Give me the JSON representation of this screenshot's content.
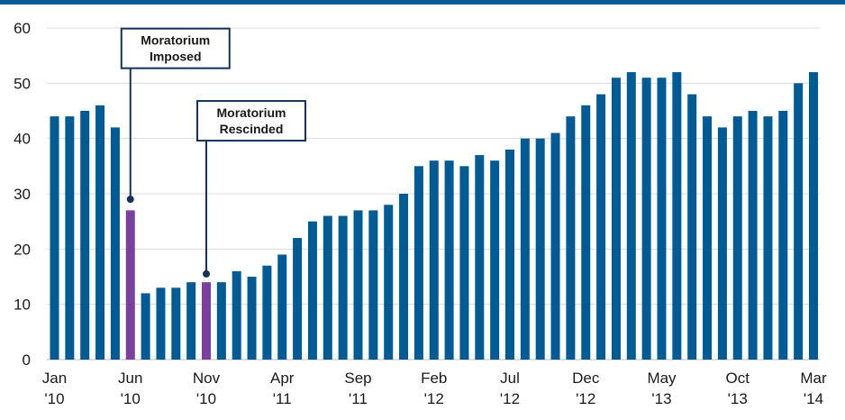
{
  "chart_data": {
    "type": "bar",
    "title": "",
    "xlabel": "",
    "ylabel": "",
    "ylim": [
      0,
      60
    ],
    "yticks": [
      0,
      10,
      20,
      30,
      40,
      50,
      60
    ],
    "grid": true,
    "values": [
      44,
      44,
      45,
      46,
      42,
      27,
      12,
      13,
      13,
      14,
      14,
      14,
      16,
      15,
      17,
      19,
      22,
      25,
      26,
      26,
      27,
      27,
      28,
      30,
      35,
      36,
      36,
      35,
      37,
      36,
      38,
      40,
      40,
      41,
      44,
      46,
      48,
      51,
      52,
      51,
      51,
      52,
      48,
      44,
      42,
      44,
      45,
      44,
      45,
      50,
      52
    ],
    "highlight_indices": [
      5,
      10
    ],
    "xtick_labels": [
      {
        "index": 0,
        "line1": "Jan",
        "line2": "'10"
      },
      {
        "index": 5,
        "line1": "Jun",
        "line2": "'10"
      },
      {
        "index": 10,
        "line1": "Nov",
        "line2": "'10"
      },
      {
        "index": 15,
        "line1": "Apr",
        "line2": "'11"
      },
      {
        "index": 20,
        "line1": "Sep",
        "line2": "'11"
      },
      {
        "index": 25,
        "line1": "Feb",
        "line2": "'12"
      },
      {
        "index": 30,
        "line1": "Jul",
        "line2": "'12"
      },
      {
        "index": 35,
        "line1": "Dec",
        "line2": "'12"
      },
      {
        "index": 40,
        "line1": "May",
        "line2": "'13"
      },
      {
        "index": 45,
        "line1": "Oct",
        "line2": "'13"
      },
      {
        "index": 50,
        "line1": "Mar",
        "line2": "'14"
      }
    ],
    "annotations": [
      {
        "index": 5,
        "value": 29,
        "line1": "Moratorium",
        "line2": "Imposed",
        "box_value": 56.3
      },
      {
        "index": 10,
        "value": 15.5,
        "line1": "Moratorium",
        "line2": "Rescinded",
        "box_value": 43.2
      }
    ],
    "colors": {
      "bar": "#005b94",
      "highlight": "#7b3f9e",
      "top_rule": "#005b94",
      "grid": "#d9d9d9",
      "annotation": "#15325a"
    }
  }
}
